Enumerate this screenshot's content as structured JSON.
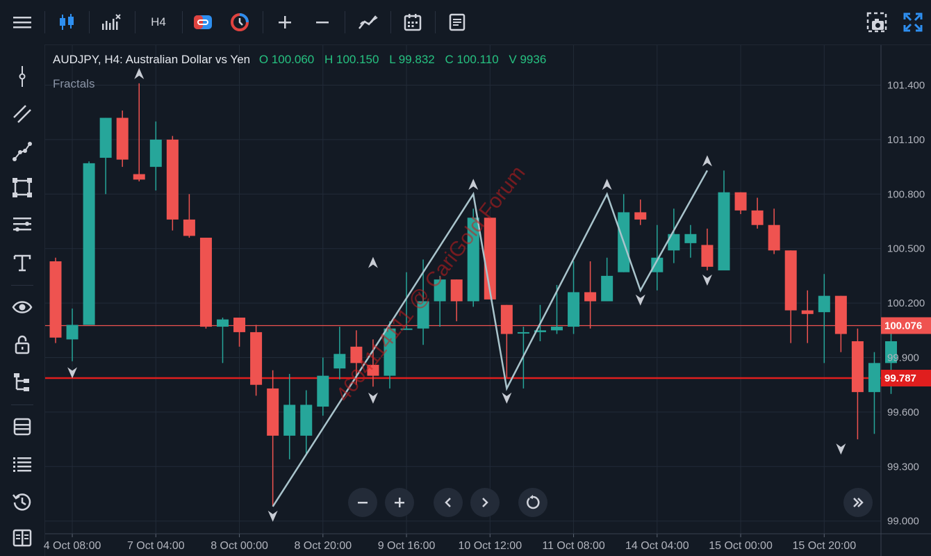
{
  "toolbar": {
    "timeframe": "H4",
    "icons": [
      "menu-icon",
      "candlestick-icon",
      "indicators-icon",
      "timeframe",
      "trade-icon",
      "quick-trade-icon",
      "zoom-in-icon",
      "zoom-out-icon",
      "drawing-icon",
      "calendar-icon",
      "report-icon",
      "screenshot-icon",
      "fullscreen-icon"
    ]
  },
  "sidebar": {
    "tools": [
      "crosshair-icon",
      "line-tools-icon",
      "path-icon",
      "shapes-icon",
      "fibonacci-icon",
      "text-icon",
      "eye-icon",
      "lock-icon",
      "object-tree-icon",
      "layers-icon",
      "list-icon",
      "history-icon",
      "data-window-icon"
    ]
  },
  "legend": {
    "symbol": "AUDJPY, H4: Australian Dollar vs Yen",
    "open": "O 100.060",
    "high": "H 100.150",
    "low": "L 99.832",
    "close": "C 100.110",
    "volume": "V 9936",
    "indicator": "Fractals"
  },
  "price_axis": {
    "labels": [
      "101.400",
      "101.100",
      "100.800",
      "100.500",
      "100.200",
      "99.900",
      "99.600",
      "99.300",
      "99.000"
    ],
    "bid_label": "100.076",
    "ask_label": "99.787"
  },
  "time_axis": {
    "labels": [
      "4 Oct 08:00",
      "7 Oct 04:00",
      "8 Oct 00:00",
      "8 Oct 20:00",
      "9 Oct 16:00",
      "10 Oct 12:00",
      "11 Oct 08:00",
      "14 Oct 04:00",
      "15 Oct 00:00",
      "15 Oct 20:00"
    ]
  },
  "watermark": "4604114111 @ CariGold Forum",
  "colors": {
    "up": "#26a69a",
    "down": "#ef5350",
    "zigzag": "#a9c4cc",
    "bid_line": "#ef5350",
    "ask_line": "#e01e1e"
  },
  "chart_data": {
    "type": "candlestick",
    "symbol": "AUDJPY",
    "timeframe": "H4",
    "ylim": [
      98.93,
      101.62
    ],
    "candles": [
      {
        "o": 100.43,
        "h": 100.45,
        "l": 99.98,
        "c": 100.01
      },
      {
        "o": 100.0,
        "h": 100.17,
        "l": 99.88,
        "c": 100.08
      },
      {
        "o": 100.08,
        "h": 100.98,
        "l": 100.08,
        "c": 100.97
      },
      {
        "o": 101.0,
        "h": 101.22,
        "l": 100.8,
        "c": 101.22
      },
      {
        "o": 101.22,
        "h": 101.26,
        "l": 100.95,
        "c": 100.99
      },
      {
        "o": 100.91,
        "h": 101.41,
        "l": 100.87,
        "c": 100.88
      },
      {
        "o": 100.95,
        "h": 101.2,
        "l": 100.82,
        "c": 101.1
      },
      {
        "o": 101.1,
        "h": 101.12,
        "l": 100.6,
        "c": 100.66
      },
      {
        "o": 100.66,
        "h": 100.8,
        "l": 100.56,
        "c": 100.57
      },
      {
        "o": 100.56,
        "h": 100.56,
        "l": 100.06,
        "c": 100.07
      },
      {
        "o": 100.07,
        "h": 100.12,
        "l": 99.87,
        "c": 100.11
      },
      {
        "o": 100.12,
        "h": 100.12,
        "l": 99.96,
        "c": 100.04
      },
      {
        "o": 100.04,
        "h": 100.08,
        "l": 99.69,
        "c": 99.75
      },
      {
        "o": 99.73,
        "h": 99.83,
        "l": 99.08,
        "c": 99.47
      },
      {
        "o": 99.47,
        "h": 99.81,
        "l": 99.34,
        "c": 99.64
      },
      {
        "o": 99.47,
        "h": 99.72,
        "l": 99.37,
        "c": 99.64
      },
      {
        "o": 99.63,
        "h": 99.9,
        "l": 99.58,
        "c": 99.8
      },
      {
        "o": 99.84,
        "h": 100.07,
        "l": 99.78,
        "c": 99.92
      },
      {
        "o": 99.96,
        "h": 100.05,
        "l": 99.75,
        "c": 99.87
      },
      {
        "o": 99.86,
        "h": 100.0,
        "l": 99.74,
        "c": 99.8
      },
      {
        "o": 99.8,
        "h": 100.1,
        "l": 99.73,
        "c": 100.06
      },
      {
        "o": 100.06,
        "h": 100.37,
        "l": 100.06,
        "c": 100.06
      },
      {
        "o": 100.06,
        "h": 100.44,
        "l": 99.97,
        "c": 100.21
      },
      {
        "o": 100.21,
        "h": 100.35,
        "l": 100.07,
        "c": 100.33
      },
      {
        "o": 100.33,
        "h": 100.33,
        "l": 100.1,
        "c": 100.21
      },
      {
        "o": 100.21,
        "h": 100.72,
        "l": 100.18,
        "c": 100.67
      },
      {
        "o": 100.67,
        "h": 100.67,
        "l": 100.22,
        "c": 100.22
      },
      {
        "o": 100.19,
        "h": 100.19,
        "l": 99.79,
        "c": 100.03
      },
      {
        "o": 100.04,
        "h": 100.07,
        "l": 99.73,
        "c": 100.04
      },
      {
        "o": 100.04,
        "h": 100.19,
        "l": 99.99,
        "c": 100.05
      },
      {
        "o": 100.05,
        "h": 100.3,
        "l": 100.03,
        "c": 100.07
      },
      {
        "o": 100.07,
        "h": 100.43,
        "l": 100.03,
        "c": 100.26
      },
      {
        "o": 100.26,
        "h": 100.43,
        "l": 100.06,
        "c": 100.21
      },
      {
        "o": 100.21,
        "h": 100.45,
        "l": 100.21,
        "c": 100.35
      },
      {
        "o": 100.37,
        "h": 100.8,
        "l": 100.37,
        "c": 100.7
      },
      {
        "o": 100.7,
        "h": 100.77,
        "l": 100.63,
        "c": 100.66
      },
      {
        "o": 100.37,
        "h": 100.63,
        "l": 100.27,
        "c": 100.45
      },
      {
        "o": 100.49,
        "h": 100.72,
        "l": 100.42,
        "c": 100.58
      },
      {
        "o": 100.53,
        "h": 100.63,
        "l": 100.45,
        "c": 100.58
      },
      {
        "o": 100.52,
        "h": 100.61,
        "l": 100.38,
        "c": 100.4
      },
      {
        "o": 100.38,
        "h": 100.93,
        "l": 100.38,
        "c": 100.81
      },
      {
        "o": 100.81,
        "h": 100.81,
        "l": 100.69,
        "c": 100.71
      },
      {
        "o": 100.71,
        "h": 100.78,
        "l": 100.61,
        "c": 100.63
      },
      {
        "o": 100.63,
        "h": 100.72,
        "l": 100.47,
        "c": 100.49
      },
      {
        "o": 100.49,
        "h": 100.49,
        "l": 99.98,
        "c": 100.16
      },
      {
        "o": 100.16,
        "h": 100.27,
        "l": 99.98,
        "c": 100.14
      },
      {
        "o": 100.15,
        "h": 100.36,
        "l": 99.87,
        "c": 100.24
      },
      {
        "o": 100.24,
        "h": 100.24,
        "l": 99.93,
        "c": 100.03
      },
      {
        "o": 99.99,
        "h": 100.06,
        "l": 99.45,
        "c": 99.71
      },
      {
        "o": 99.71,
        "h": 99.93,
        "l": 99.48,
        "c": 99.87
      },
      {
        "o": 99.87,
        "h": 100.06,
        "l": 99.7,
        "c": 99.99
      }
    ],
    "fractals": [
      {
        "i": 1,
        "dir": "down",
        "price": 99.87
      },
      {
        "i": 5,
        "dir": "up",
        "price": 101.41
      },
      {
        "i": 13,
        "dir": "down",
        "price": 99.08
      },
      {
        "i": 19,
        "dir": "up",
        "price": 100.37
      },
      {
        "i": 19,
        "dir": "down",
        "price": 99.73
      },
      {
        "i": 25,
        "dir": "up",
        "price": 100.8
      },
      {
        "i": 27,
        "dir": "down",
        "price": 99.73
      },
      {
        "i": 33,
        "dir": "up",
        "price": 100.8
      },
      {
        "i": 35,
        "dir": "down",
        "price": 100.27
      },
      {
        "i": 39,
        "dir": "up",
        "price": 100.93
      },
      {
        "i": 39,
        "dir": "down",
        "price": 100.38
      },
      {
        "i": 47,
        "dir": "down",
        "price": 99.45
      }
    ],
    "zigzag": [
      {
        "i": 13,
        "price": 99.08
      },
      {
        "i": 25,
        "price": 100.8
      },
      {
        "i": 27,
        "price": 99.73
      },
      {
        "i": 33,
        "price": 100.8
      },
      {
        "i": 35,
        "price": 100.27
      },
      {
        "i": 39,
        "price": 100.93
      }
    ],
    "horizontal_lines": [
      {
        "name": "bid",
        "price": 100.076
      },
      {
        "name": "ask",
        "price": 99.787
      }
    ]
  }
}
